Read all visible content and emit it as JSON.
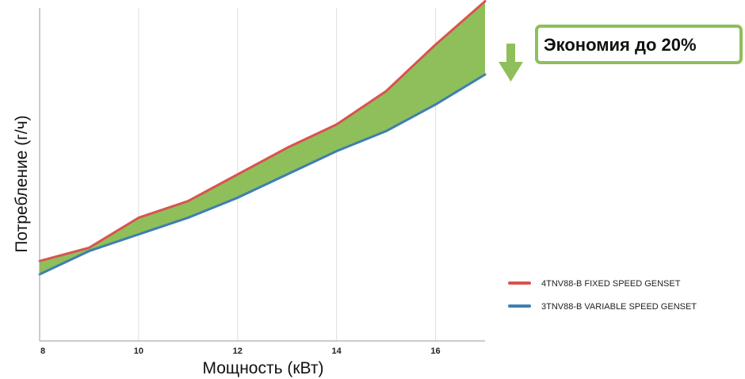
{
  "chart_data": {
    "type": "area",
    "title": "",
    "xlabel": "Мощность (кВт)",
    "ylabel": "Потребление (г/ч)",
    "x": [
      8,
      9,
      10,
      11,
      12,
      13,
      14,
      15,
      16,
      17
    ],
    "xlim": [
      8,
      17
    ],
    "ylim": [
      0,
      100
    ],
    "x_ticks": [
      "8",
      "10",
      "12",
      "14",
      "16"
    ],
    "grid": "vertical",
    "series": [
      {
        "name": "4TNV88-B FIXED SPEED GENSET",
        "color": "#d9534f",
        "values": [
          24,
          28,
          37,
          42,
          50,
          58,
          65,
          75,
          89,
          102
        ]
      },
      {
        "name": "3TNV88-B VARIABLE SPEED GENSET",
        "color": "#3f7fae",
        "values": [
          20,
          27,
          32,
          37,
          43,
          50,
          57,
          63,
          71,
          80
        ]
      }
    ],
    "fill_between": {
      "color": "#8fbf5a"
    },
    "legend_position": "bottom-right",
    "annotation": {
      "text": "Экономия до 20%",
      "arrow": "down-arrow-icon",
      "color": "#8fbf5a"
    }
  }
}
